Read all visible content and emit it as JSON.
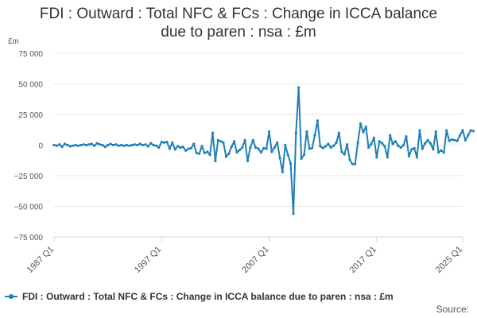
{
  "chart_data": {
    "type": "line",
    "title": "FDI : Outward : Total NFC & FCs : Change in ICCA balance due to paren : nsa : £m",
    "title_lines": [
      "FDI : Outward : Total NFC & FCs : Change in ICCA balance",
      "due to paren : nsa : £m"
    ],
    "ylabel": "£m",
    "xlabel": "",
    "ylim": [
      -75000,
      75000
    ],
    "yticks": [
      {
        "value": 75000,
        "label": "75 000"
      },
      {
        "value": 50000,
        "label": "50 000"
      },
      {
        "value": 25000,
        "label": "25 000"
      },
      {
        "value": 0,
        "label": "0"
      },
      {
        "value": -25000,
        "label": "−25 000"
      },
      {
        "value": -50000,
        "label": "−50 000"
      },
      {
        "value": -75000,
        "label": "−75 000"
      }
    ],
    "xticks": [
      {
        "value": 1987,
        "label": "1987 Q1"
      },
      {
        "value": 1997,
        "label": "1997 Q1"
      },
      {
        "value": 2007,
        "label": "2007 Q1"
      },
      {
        "value": 2017,
        "label": "2017 Q1"
      },
      {
        "value": 2025,
        "label": "2025 Q1"
      }
    ],
    "xlim": [
      1987,
      2025
    ],
    "grid": "horizontal",
    "legend_position": "bottom",
    "color": "#1f7fb7",
    "series": [
      {
        "name": "FDI : Outward : Total NFC & FCs : Change in ICCA balance due to paren : nsa : £m",
        "start": "1987 Q1",
        "frequency": "quarterly",
        "values": [
          0,
          -500,
          500,
          -1500,
          1000,
          0,
          -1000,
          -500,
          0,
          -500,
          0,
          500,
          0,
          500,
          1000,
          -500,
          1500,
          500,
          0,
          -1500,
          0,
          1000,
          0,
          500,
          -500,
          0,
          -500,
          0,
          -500,
          0,
          500,
          0,
          1000,
          0,
          500,
          -1000,
          1500,
          0,
          -500,
          -2000,
          2500,
          2000,
          2500,
          -3000,
          2000,
          -3500,
          -1000,
          -2000,
          -1500,
          -4500,
          -3000,
          -2500,
          1000,
          -6500,
          -7000,
          -1000,
          -6500,
          -5500,
          -8000,
          10000,
          -13000,
          4000,
          3000,
          2000,
          -9500,
          -7000,
          -1500,
          3000,
          -6000,
          -4000,
          -2000,
          4000,
          -13000,
          -2000,
          4000,
          -2000,
          -3000,
          -6000,
          -2500,
          -3000,
          11000,
          -5500,
          -2000,
          2000,
          -10500,
          -22000,
          0,
          -8000,
          -15000,
          -56000,
          10000,
          47000,
          -11000,
          -8000,
          11000,
          -3000,
          -2500,
          8000,
          20000,
          -1000,
          -2500,
          -1000,
          1000,
          -2000,
          -500,
          2000,
          10000,
          -5500,
          -7500,
          500,
          -12000,
          -15500,
          -15500,
          2000,
          17500,
          10500,
          15000,
          -2000,
          1000,
          6000,
          -10000,
          3000,
          1500,
          -1000,
          -10000,
          8000,
          1000,
          3000,
          -500,
          -2000,
          0,
          7000,
          -9000,
          -3500,
          -2500,
          -10000,
          12000,
          -3000,
          1500,
          4000,
          1500,
          -3500,
          11000,
          -6000,
          -4500,
          -6000,
          12000,
          3500,
          4500,
          4000,
          3500,
          8000,
          12000,
          4000,
          8000,
          12000,
          11500
        ]
      }
    ]
  },
  "source_label": "Source:"
}
